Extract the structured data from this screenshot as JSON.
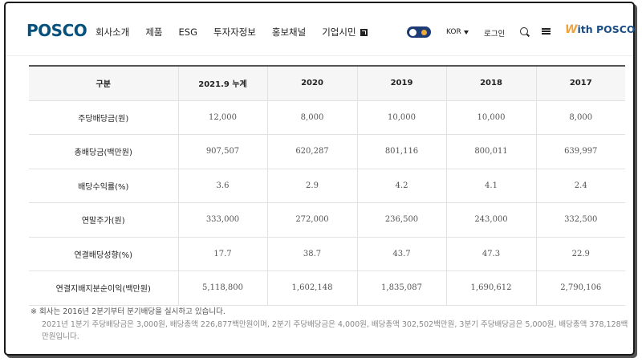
{
  "header": {
    "logo": "POSCO",
    "nav": [
      "회사소개",
      "제품",
      "ESG",
      "투자자정보",
      "홍보채널",
      "기업시민"
    ],
    "lang": "KOR",
    "login": "로그인",
    "brand_logo_w": "W",
    "brand_logo_text": "ith POSCO"
  },
  "table": {
    "headers": [
      "구분",
      "2021.9 누계",
      "2020",
      "2019",
      "2018",
      "2017"
    ],
    "rows": [
      [
        "주당배당금(원)",
        "12,000",
        "8,000",
        "10,000",
        "10,000",
        "8,000"
      ],
      [
        "총배당금(백만원)",
        "907,507",
        "620,287",
        "801,116",
        "800,011",
        "639,997"
      ],
      [
        "배당수익률(%)",
        "3.6",
        "2.9",
        "4.2",
        "4.1",
        "2.4"
      ],
      [
        "연말주가(원)",
        "333,000",
        "272,000",
        "236,500",
        "243,000",
        "332,500"
      ],
      [
        "연결배당성향(%)",
        "17.7",
        "38.7",
        "43.7",
        "47.3",
        "22.9"
      ],
      [
        "연결지배지분순이익(백만원)",
        "5,118,800",
        "1,602,148",
        "1,835,087",
        "1,690,612",
        "2,790,106"
      ]
    ]
  },
  "notes": {
    "main": "※ 회사는 2016년 2분기부터 분기배당을 실시하고 있습니다.",
    "sub": "2021년 1분기 주당배당금은 3,000원, 배당총액 226,877백만원이며, 2분기 주당배당금은 4,000원, 배당총액 302,502백만원, 3분기 주당배당금은 5,000원, 배당총액 378,128백만원입니다."
  }
}
